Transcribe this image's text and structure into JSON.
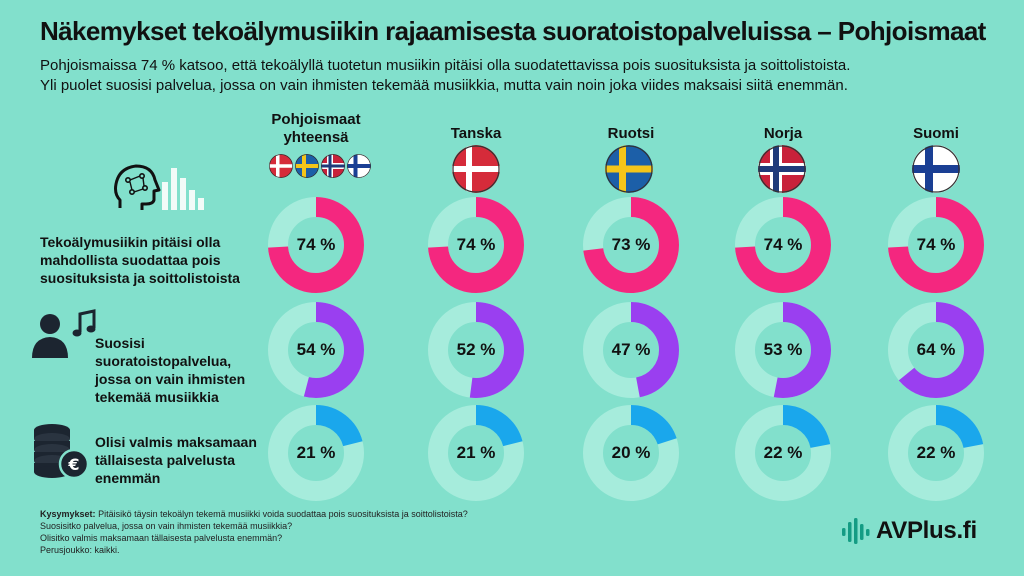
{
  "title": "Näkemykset tekoälymusiikin rajaamisesta suoratoistopalveluissa – Pohjoismaat",
  "subtitle_lines": [
    "Pohjoismaissa 74 % katsoo, että tekoälyllä tuotetun musiikin pitäisi olla suodatettavissa pois suosituksista ja soittolistoista.",
    "Yli puolet suosisi palvelua, jossa on vain ihmisten tekemää musiikkia, mutta vain noin joka viides maksaisi siitä enemmän."
  ],
  "columns": [
    {
      "label_lines": [
        "Pohjoismaat",
        "yhteensä"
      ]
    },
    {
      "label_lines": [
        "Tanska"
      ]
    },
    {
      "label_lines": [
        "Ruotsi"
      ]
    },
    {
      "label_lines": [
        "Norja"
      ]
    },
    {
      "label_lines": [
        "Suomi"
      ]
    }
  ],
  "rows": [
    {
      "label": "Tekoälymusiikin pitäisi olla mahdollista suodattaa pois suosituksista ja soittolistoista",
      "icon": "ai-head-icon"
    },
    {
      "label": "Suosisi suoratoistopalvelua, jossa on vain ihmisten tekemää musiikkia",
      "icon": "person-music-icon"
    },
    {
      "label": "Olisi valmis maksamaan tällaisesta palvelusta enemmän",
      "icon": "coins-euro-icon"
    }
  ],
  "colors": {
    "background": "#82e0cc",
    "track": "#a6ecdc",
    "row1": "#f4277f",
    "row2": "#9a3ff0",
    "row3": "#1aa7ec"
  },
  "chart_data": {
    "type": "donut",
    "categories": [
      "Pohjoismaat yhteensä",
      "Tanska",
      "Ruotsi",
      "Norja",
      "Suomi"
    ],
    "unit": "%",
    "series": [
      {
        "name": "Tekoälymusiikin pitäisi olla mahdollista suodattaa pois suosituksista ja soittolistoista",
        "values": [
          74,
          74,
          73,
          74,
          74
        ]
      },
      {
        "name": "Suosisi suoratoistopalvelua, jossa on vain ihmisten tekemää musiikkia",
        "values": [
          54,
          52,
          47,
          53,
          64
        ]
      },
      {
        "name": "Olisi valmis maksamaan tällaisesta palvelusta enemmän",
        "values": [
          21,
          21,
          20,
          22,
          22
        ]
      }
    ],
    "value_labels": [
      [
        "74 %",
        "74 %",
        "73 %",
        "74 %",
        "74 %"
      ],
      [
        "54 %",
        "52 %",
        "47 %",
        "53 %",
        "64 %"
      ],
      [
        "21 %",
        "21 %",
        "20 %",
        "22 %",
        "22 %"
      ]
    ]
  },
  "footer": {
    "label": "Kysymykset:",
    "lines": [
      "Pitäisikö täysin tekoälyn tekemä musiikki voida suodattaa pois suosituksista ja soittolistoista?",
      "Suosisitko palvelua, jossa on vain ihmisten tekemää musiikkia?",
      "Olisitko valmis maksamaan tällaisesta palvelusta enemmän?",
      "Perusjoukko: kaikki."
    ]
  },
  "logo": {
    "text": "AVPlus.fi",
    "icon": "sound-wave-icon"
  }
}
